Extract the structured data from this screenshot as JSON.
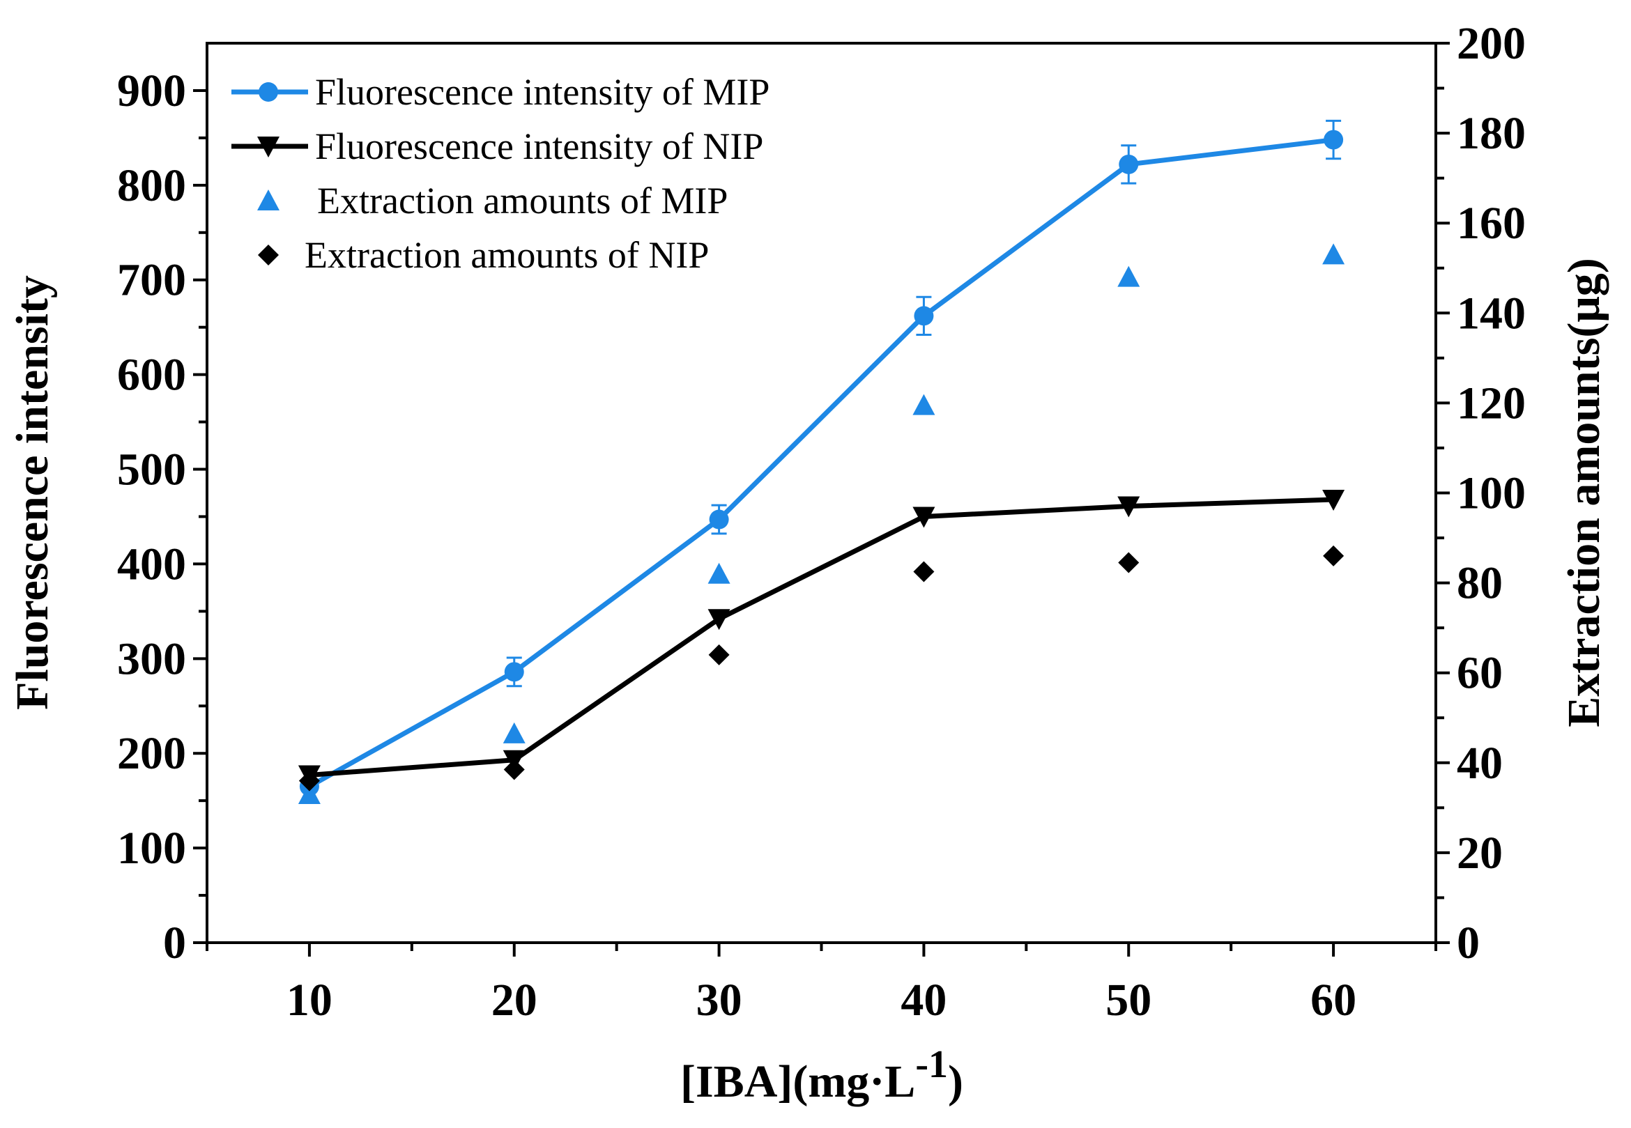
{
  "chart_data": {
    "type": "line",
    "title": "",
    "xlabel_main": "[IBA](mg·L",
    "xlabel_sup": "-1",
    "xlabel_close": ")",
    "ylabel_left": "Fluorescence intensity",
    "ylabel_right": "Extraction amounts(μg)",
    "xlim": [
      5,
      65
    ],
    "ylim_left": [
      0,
      950
    ],
    "ylim_right": [
      0,
      200
    ],
    "x": [
      10,
      20,
      30,
      40,
      50,
      60
    ],
    "x_ticks": [
      "10",
      "20",
      "30",
      "40",
      "50",
      "60"
    ],
    "y_left_ticks": [
      "0",
      "100",
      "200",
      "300",
      "400",
      "500",
      "600",
      "700",
      "800",
      "900"
    ],
    "y_right_ticks": [
      "0",
      "20",
      "40",
      "60",
      "80",
      "100",
      "120",
      "140",
      "160",
      "180",
      "200"
    ],
    "legend_position": "top-left",
    "grid": false,
    "series": [
      {
        "name": "Fluorescence intensity of MIP",
        "axis": "left",
        "style": "line-circle",
        "color": "#1E88E5",
        "values": [
          165,
          286,
          447,
          662,
          822,
          848
        ],
        "errors": [
          0,
          15,
          15,
          20,
          20,
          20
        ]
      },
      {
        "name": "Fluorescence intensity of NIP",
        "axis": "left",
        "style": "line-triangle-down",
        "color": "#000000",
        "values": [
          177,
          193,
          342,
          450,
          461,
          468
        ]
      },
      {
        "name": "Extraction amounts of MIP",
        "axis": "right",
        "style": "triangle-up",
        "color": "#1E88E5",
        "values": [
          33,
          46.5,
          82,
          119.5,
          148,
          153
        ]
      },
      {
        "name": "Extraction amounts of NIP",
        "axis": "right",
        "style": "diamond",
        "color": "#000000",
        "values": [
          36,
          38.5,
          64,
          82.5,
          84.5,
          86
        ]
      }
    ]
  }
}
